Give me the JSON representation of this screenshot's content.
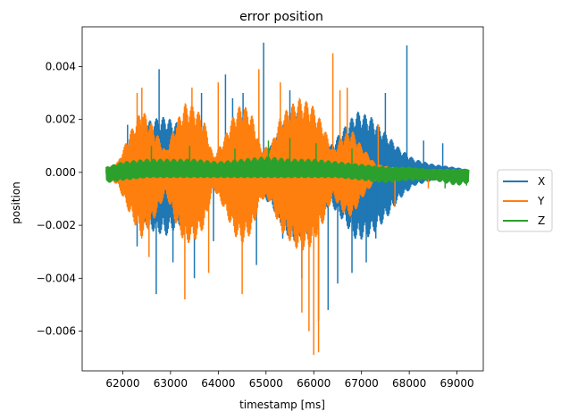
{
  "chart_data": {
    "type": "line",
    "title": "error position",
    "xlabel": "timestamp [ms]",
    "ylabel": "position",
    "xlim": [
      61150,
      69550
    ],
    "ylim": [
      -0.0075,
      0.0055
    ],
    "x_ticks": [
      62000,
      63000,
      64000,
      65000,
      66000,
      67000,
      68000,
      69000
    ],
    "x_tick_labels": [
      "62000",
      "63000",
      "64000",
      "65000",
      "66000",
      "67000",
      "68000",
      "69000"
    ],
    "y_ticks": [
      0.004,
      0.002,
      0.0,
      -0.002,
      -0.004,
      -0.006
    ],
    "y_tick_labels": [
      "0.004",
      "0.002",
      "0.000",
      "−0.002",
      "−0.004",
      "−0.006"
    ],
    "grid": false,
    "legend_position": "outside-right",
    "series": [
      {
        "name": "X",
        "color": "#1f77b4",
        "envelope": {
          "x": [
            61650,
            61900,
            62050,
            62200,
            62350,
            62600,
            62900,
            63200,
            63550,
            63800,
            64000,
            64250,
            64500,
            64800,
            65100,
            65400,
            65600,
            65850,
            66100,
            66350,
            66600,
            66900,
            67200,
            67500,
            67800,
            68100,
            68500,
            68900,
            69250
          ],
          "upper": [
            0.0001,
            0.0003,
            0.0008,
            0.0012,
            0.0016,
            0.002,
            0.0021,
            0.0018,
            0.001,
            0.0004,
            0.0003,
            0.0006,
            0.0009,
            0.0006,
            0.001,
            0.002,
            0.0023,
            0.0021,
            0.0015,
            0.001,
            0.0016,
            0.0023,
            0.0021,
            0.0015,
            0.0009,
            0.0005,
            0.0003,
            0.0002,
            0.0001
          ],
          "lower": [
            -0.0001,
            -0.0003,
            -0.0008,
            -0.0013,
            -0.0017,
            -0.0022,
            -0.0024,
            -0.002,
            -0.0012,
            -0.0005,
            -0.0004,
            -0.0006,
            -0.001,
            -0.0008,
            -0.0012,
            -0.0023,
            -0.0026,
            -0.0024,
            -0.0017,
            -0.0012,
            -0.0018,
            -0.0026,
            -0.0024,
            -0.0018,
            -0.001,
            -0.0005,
            -0.0003,
            -0.0002,
            -0.0001
          ]
        },
        "spikes": [
          {
            "x": 62100,
            "y": 0.0018
          },
          {
            "x": 62300,
            "y": -0.0028
          },
          {
            "x": 62700,
            "y": -0.0046
          },
          {
            "x": 62760,
            "y": 0.0039
          },
          {
            "x": 63050,
            "y": -0.0034
          },
          {
            "x": 63500,
            "y": -0.004
          },
          {
            "x": 63650,
            "y": 0.003
          },
          {
            "x": 63900,
            "y": -0.0026
          },
          {
            "x": 64150,
            "y": 0.0037
          },
          {
            "x": 64300,
            "y": 0.0028
          },
          {
            "x": 64520,
            "y": 0.003
          },
          {
            "x": 64800,
            "y": -0.0035
          },
          {
            "x": 64950,
            "y": 0.0049
          },
          {
            "x": 65350,
            "y": -0.0025
          },
          {
            "x": 65500,
            "y": 0.0031
          },
          {
            "x": 65750,
            "y": -0.004
          },
          {
            "x": 66100,
            "y": -0.0056
          },
          {
            "x": 66300,
            "y": -0.0052
          },
          {
            "x": 66500,
            "y": -0.0042
          },
          {
            "x": 66800,
            "y": -0.0038
          },
          {
            "x": 67100,
            "y": -0.0034
          },
          {
            "x": 67300,
            "y": -0.0025
          },
          {
            "x": 67500,
            "y": 0.003
          },
          {
            "x": 67950,
            "y": 0.0048
          },
          {
            "x": 68300,
            "y": 0.0012
          },
          {
            "x": 68700,
            "y": 0.0011
          }
        ]
      },
      {
        "name": "Y",
        "color": "#ff7f0e",
        "envelope": {
          "x": [
            61650,
            61900,
            62150,
            62400,
            62650,
            62900,
            63100,
            63300,
            63500,
            63700,
            63900,
            64100,
            64350,
            64500,
            64700,
            64900,
            65100,
            65300,
            65500,
            65700,
            65950,
            66200,
            66400,
            66600,
            66800,
            67000,
            67300,
            67600,
            68000,
            68500,
            69000,
            69250
          ],
          "upper": [
            0.0001,
            0.0004,
            0.0015,
            0.0024,
            0.0017,
            0.0008,
            0.0018,
            0.0026,
            0.0025,
            0.002,
            0.0006,
            0.0012,
            0.0023,
            0.0026,
            0.0022,
            0.0009,
            0.001,
            0.0021,
            0.0025,
            0.0028,
            0.0026,
            0.0018,
            0.0008,
            0.0014,
            0.0016,
            0.001,
            0.0003,
            0.0002,
            0.0001,
            0.0001,
            0.0001,
            0.0001
          ],
          "lower": [
            -0.0001,
            -0.0005,
            -0.0016,
            -0.0025,
            -0.0018,
            -0.0008,
            -0.0019,
            -0.0027,
            -0.0026,
            -0.0021,
            -0.0006,
            -0.0013,
            -0.0024,
            -0.0027,
            -0.0023,
            -0.001,
            -0.0011,
            -0.0022,
            -0.0026,
            -0.003,
            -0.0028,
            -0.0019,
            -0.0009,
            -0.0015,
            -0.0017,
            -0.001,
            -0.0003,
            -0.0002,
            -0.0001,
            -0.0001,
            -0.0001,
            -0.0001
          ]
        },
        "spikes": [
          {
            "x": 62300,
            "y": 0.003
          },
          {
            "x": 62400,
            "y": 0.0032
          },
          {
            "x": 62550,
            "y": -0.0032
          },
          {
            "x": 63300,
            "y": -0.0048
          },
          {
            "x": 63450,
            "y": 0.0032
          },
          {
            "x": 63800,
            "y": -0.0038
          },
          {
            "x": 64000,
            "y": 0.0034
          },
          {
            "x": 64500,
            "y": -0.0046
          },
          {
            "x": 64850,
            "y": 0.0039
          },
          {
            "x": 65300,
            "y": 0.0034
          },
          {
            "x": 65750,
            "y": -0.0053
          },
          {
            "x": 65900,
            "y": -0.006
          },
          {
            "x": 66000,
            "y": -0.0069
          },
          {
            "x": 66100,
            "y": -0.0068
          },
          {
            "x": 66400,
            "y": 0.0045
          },
          {
            "x": 66550,
            "y": 0.0031
          },
          {
            "x": 66700,
            "y": 0.0032
          },
          {
            "x": 67350,
            "y": 0.0018
          },
          {
            "x": 67700,
            "y": -0.0013
          },
          {
            "x": 68400,
            "y": -0.0006
          },
          {
            "x": 68800,
            "y": -0.0003
          }
        ]
      },
      {
        "name": "Z",
        "color": "#2ca02c",
        "envelope": {
          "x": [
            61650,
            62000,
            62500,
            63000,
            63500,
            64000,
            64500,
            65000,
            65500,
            66000,
            66500,
            67000,
            67500,
            68000,
            68500,
            69000,
            69250
          ],
          "upper": [
            0.0002,
            0.0004,
            0.0005,
            0.0005,
            0.0005,
            0.0004,
            0.0005,
            0.0006,
            0.0005,
            0.0005,
            0.0004,
            0.0003,
            0.0002,
            0.0002,
            0.0001,
            0.0001,
            0.0001
          ],
          "lower": [
            -0.0004,
            -0.0003,
            -0.0002,
            -0.0002,
            -0.0002,
            -0.0002,
            -0.0002,
            -0.0002,
            -0.0002,
            -0.0002,
            -0.0002,
            -0.0003,
            -0.0004,
            -0.0003,
            -0.0003,
            -0.0005,
            -0.0004
          ]
        },
        "spikes": [
          {
            "x": 62600,
            "y": 0.001
          },
          {
            "x": 63400,
            "y": 0.001
          },
          {
            "x": 64350,
            "y": 0.0009
          },
          {
            "x": 65050,
            "y": 0.0012
          },
          {
            "x": 65500,
            "y": 0.0013
          },
          {
            "x": 66050,
            "y": 0.0011
          },
          {
            "x": 66800,
            "y": 0.0009
          },
          {
            "x": 68750,
            "y": -0.0006
          },
          {
            "x": 69200,
            "y": -0.0005
          }
        ]
      }
    ]
  }
}
